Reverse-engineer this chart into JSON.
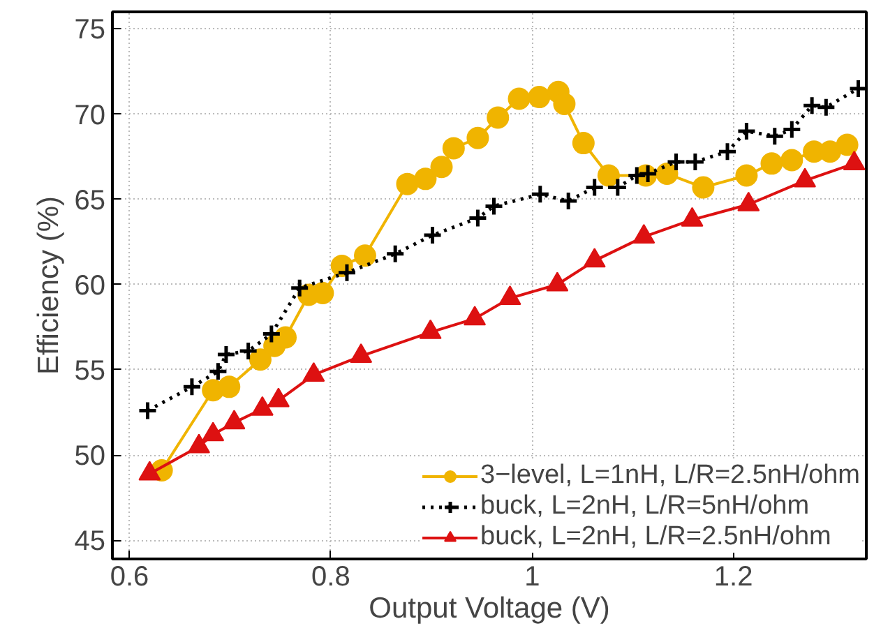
{
  "chart_data": {
    "type": "line",
    "xlabel": "Output Voltage (V)",
    "ylabel": "Efficiency (%)",
    "xlim": [
      0.583,
      1.332
    ],
    "ylim": [
      43.9,
      76
    ],
    "xticks": [
      0.6,
      0.8,
      1,
      1.2
    ],
    "yticks": [
      45,
      50,
      55,
      60,
      65,
      70,
      75
    ],
    "grid": true,
    "legend": "bottom right",
    "series": [
      {
        "name": "3−level, L=1nH, L/R=2.5nH/ohm",
        "color": "#f0b400",
        "marker": "circle",
        "line_style": "solid",
        "x": [
          0.632,
          0.683,
          0.699,
          0.73,
          0.744,
          0.755,
          0.778,
          0.792,
          0.811,
          0.834,
          0.876,
          0.894,
          0.91,
          0.922,
          0.946,
          0.966,
          0.987,
          1.007,
          1.026,
          1.032,
          1.051,
          1.076,
          1.113,
          1.134,
          1.17,
          1.213,
          1.238,
          1.258,
          1.28,
          1.296,
          1.313
        ],
        "values": [
          49.1,
          53.8,
          54.0,
          55.6,
          56.4,
          56.9,
          59.4,
          59.5,
          61.1,
          61.7,
          65.9,
          66.2,
          66.9,
          68.0,
          68.6,
          69.8,
          70.9,
          71.0,
          71.3,
          70.6,
          68.3,
          66.4,
          66.4,
          66.5,
          65.7,
          66.4,
          67.1,
          67.3,
          67.8,
          67.8,
          68.2
        ]
      },
      {
        "name": "buck, L=2nH, L/R=5nH/ohm",
        "color": "#000000",
        "marker": "cross",
        "line_style": "dotted",
        "x": [
          0.618,
          0.662,
          0.688,
          0.696,
          0.718,
          0.741,
          0.769,
          0.816,
          0.864,
          0.901,
          0.946,
          0.962,
          1.008,
          1.036,
          1.062,
          1.085,
          1.104,
          1.115,
          1.143,
          1.162,
          1.194,
          1.213,
          1.241,
          1.258,
          1.278,
          1.292,
          1.324
        ],
        "values": [
          52.6,
          54.0,
          54.9,
          55.9,
          56.1,
          57.1,
          59.8,
          60.7,
          61.8,
          62.9,
          63.9,
          64.6,
          65.3,
          64.9,
          65.7,
          65.7,
          66.4,
          66.5,
          67.2,
          67.2,
          67.8,
          69.0,
          68.7,
          69.1,
          70.5,
          70.4,
          71.5
        ]
      },
      {
        "name": "buck, L=2nH, L/R=2.5nH/ohm",
        "color": "#dd1111",
        "marker": "triangle",
        "line_style": "solid",
        "x": [
          0.62,
          0.669,
          0.683,
          0.704,
          0.732,
          0.748,
          0.783,
          0.83,
          0.899,
          0.943,
          0.978,
          1.025,
          1.062,
          1.111,
          1.159,
          1.215,
          1.271,
          1.32
        ],
        "values": [
          48.9,
          50.5,
          51.2,
          51.9,
          52.7,
          53.2,
          54.7,
          55.8,
          57.2,
          58.0,
          59.2,
          60.0,
          61.4,
          62.8,
          63.8,
          64.7,
          66.1,
          67.1
        ]
      }
    ]
  }
}
